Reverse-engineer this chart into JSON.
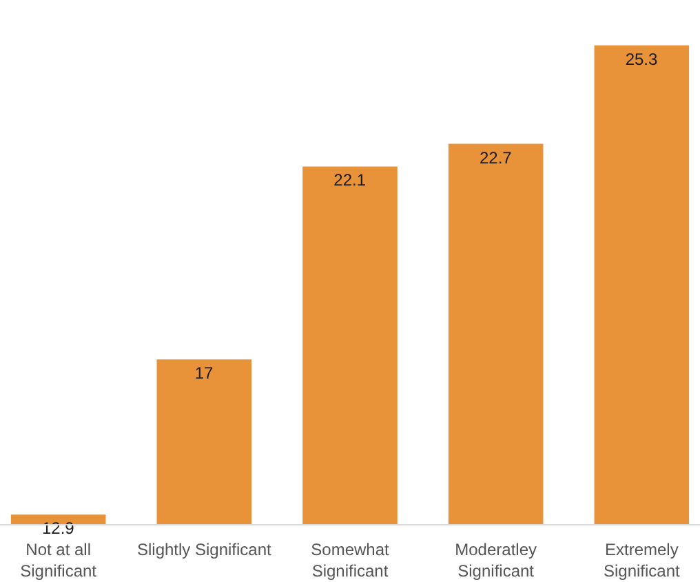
{
  "chart_data": {
    "type": "bar",
    "categories": [
      "Not at all\nSignificant",
      "Slightly Significant",
      "Somewhat\nSignificant",
      "Moderatley\nSignificant",
      "Extremely\nSignificant"
    ],
    "values": [
      12.9,
      17,
      22.1,
      22.7,
      25.3
    ],
    "color": "#e8923a",
    "ylim": [
      12.65,
      26.5
    ],
    "data_labels": true
  }
}
